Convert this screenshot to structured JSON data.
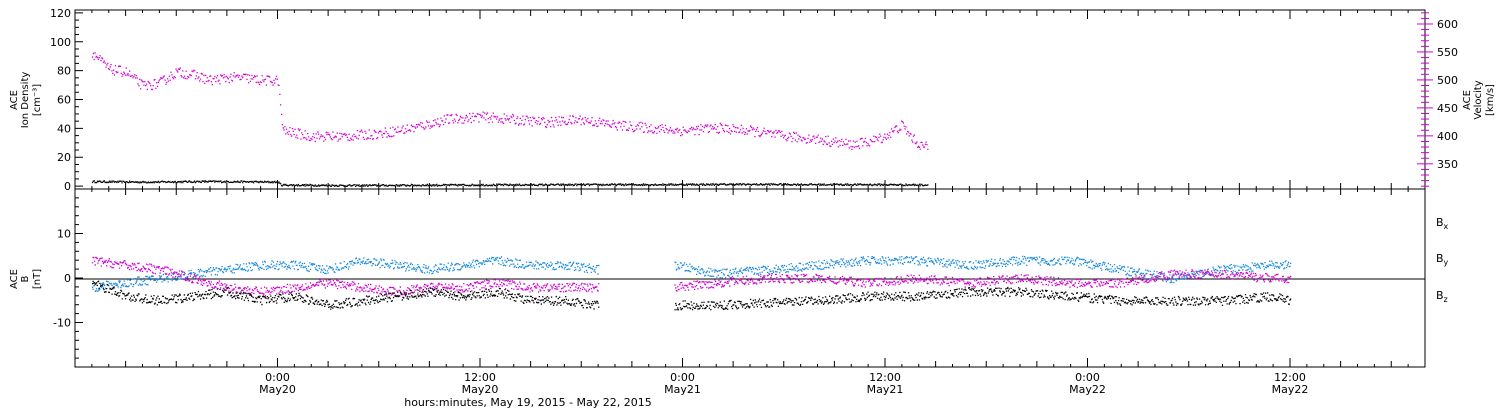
{
  "chart_data": [
    {
      "type": "scatter",
      "panel": "top",
      "ylabel_left": [
        "ACE",
        "Ion Density",
        "[cm⁻³]"
      ],
      "ylabel_right": [
        "ACE",
        "Velocity",
        "[km/s]"
      ],
      "ylim_left": [
        -2,
        122
      ],
      "yticks_left": [
        0,
        20,
        40,
        60,
        80,
        100,
        120
      ],
      "ylim_right": [
        305,
        625
      ],
      "yticks_right": [
        350,
        400,
        450,
        500,
        550,
        600
      ],
      "colors": {
        "density": "#000000",
        "velocity": "#d400d4"
      },
      "series": [
        {
          "name": "",
          "axis": "left",
          "color": "#000000",
          "x_hours": [
            -11,
            -8,
            -4,
            0,
            0.2,
            4,
            8,
            12,
            16,
            20,
            24,
            28,
            32,
            36,
            38.5
          ],
          "values": [
            3.5,
            3.2,
            3.6,
            3.2,
            1.2,
            0.8,
            1.0,
            1.2,
            1.3,
            1.4,
            1.5,
            1.6,
            1.5,
            1.4,
            1.2
          ]
        },
        {
          "name": "",
          "axis": "right",
          "color": "#d400d4",
          "x_hours": [
            -11,
            -10,
            -9,
            -8,
            -7,
            -6,
            -5,
            -4,
            -3,
            -2,
            -1,
            0,
            0.3,
            2,
            4,
            6,
            8,
            10,
            12,
            14,
            16,
            18,
            20,
            22,
            24,
            26,
            28,
            30,
            32,
            34,
            35,
            36,
            36.5,
            37,
            37.5,
            38,
            38.5
          ],
          "values": [
            550,
            520,
            515,
            490,
            495,
            515,
            510,
            500,
            505,
            505,
            500,
            500,
            410,
            400,
            400,
            405,
            415,
            430,
            435,
            430,
            425,
            430,
            420,
            415,
            410,
            415,
            410,
            400,
            395,
            385,
            390,
            400,
            410,
            420,
            400,
            385,
            380
          ]
        }
      ]
    },
    {
      "type": "scatter",
      "panel": "bottom",
      "ylabel": [
        "ACE",
        "B",
        "[nT]"
      ],
      "ylim": [
        -20,
        20
      ],
      "yticks": [
        -10,
        0,
        10
      ],
      "legend": [
        "Bₓ",
        "Bᵧ",
        "B_z"
      ],
      "legend_labels": [
        {
          "main": "B",
          "sub": "x",
          "color": "#000000"
        },
        {
          "main": "B",
          "sub": "y",
          "color": "#1a8adb"
        },
        {
          "main": "B",
          "sub": "z",
          "color": "#d400d4"
        }
      ],
      "gap_hours": [
        19,
        23.5
      ],
      "series": [
        {
          "name": "Bx",
          "color": "#000000",
          "x_hours": [
            -11,
            -9,
            -7,
            -5,
            -3,
            -1,
            1,
            3,
            5,
            7,
            9,
            11,
            13,
            15,
            17,
            19,
            23.5,
            26,
            29,
            32,
            35,
            38,
            41,
            44,
            47,
            50,
            53,
            56,
            59,
            60
          ],
          "values": [
            -1,
            -4,
            -5,
            -4,
            -3,
            -5,
            -4,
            -6,
            -5,
            -4,
            -3,
            -4,
            -3,
            -5,
            -5,
            -6,
            -6,
            -6,
            -5.5,
            -5,
            -4,
            -4,
            -3,
            -3,
            -4,
            -5,
            -5,
            -5,
            -4,
            -5
          ]
        },
        {
          "name": "By",
          "color": "#1a8adb",
          "x_hours": [
            -11,
            -9,
            -7,
            -5,
            -3,
            -1,
            1,
            3,
            5,
            7,
            9,
            11,
            13,
            15,
            17,
            19,
            23.5,
            26,
            29,
            32,
            35,
            38,
            41,
            44,
            47,
            50,
            53,
            56,
            59,
            60
          ],
          "values": [
            -2,
            -1,
            0,
            1,
            2,
            3,
            3,
            2,
            4,
            3,
            2,
            3,
            4,
            3,
            3,
            2,
            3,
            1,
            2,
            3,
            4,
            4,
            3,
            4,
            4,
            2,
            0,
            2,
            3,
            3
          ]
        },
        {
          "name": "Bz",
          "color": "#d400d4",
          "x_hours": [
            -11,
            -9,
            -7,
            -5,
            -3,
            -1,
            1,
            3,
            5,
            7,
            9,
            11,
            13,
            15,
            17,
            19,
            23.5,
            26,
            29,
            32,
            35,
            38,
            41,
            44,
            47,
            50,
            53,
            56,
            59,
            60
          ],
          "values": [
            4,
            3,
            2,
            0,
            -2,
            -3,
            -2,
            -1,
            -2,
            -3,
            -2,
            -2,
            -1,
            -2,
            -2,
            -2,
            -2,
            -1,
            0,
            0,
            -1,
            0,
            -1,
            0,
            -1,
            -1,
            1,
            1,
            0,
            0
          ]
        }
      ]
    }
  ],
  "x_axis": {
    "range_hours": [
      -12,
      68
    ],
    "ticks": [
      {
        "h": 0,
        "time": "0:00",
        "date": "May20"
      },
      {
        "h": 12,
        "time": "12:00",
        "date": "May20"
      },
      {
        "h": 24,
        "time": "0:00",
        "date": "May21"
      },
      {
        "h": 36,
        "time": "12:00",
        "date": "May21"
      },
      {
        "h": 48,
        "time": "0:00",
        "date": "May22"
      },
      {
        "h": 60,
        "time": "12:00",
        "date": "May22"
      }
    ],
    "label": "hours:minutes, May 19, 2015 - May 22, 2015"
  }
}
